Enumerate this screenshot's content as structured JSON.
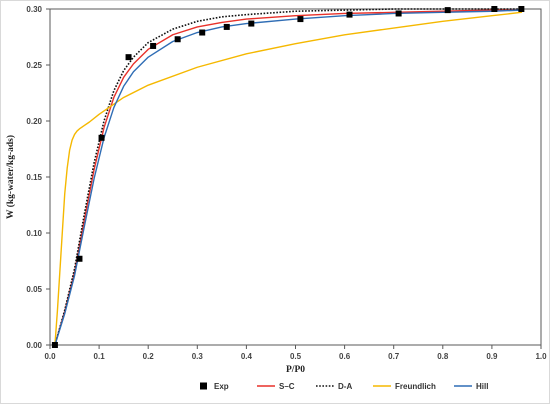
{
  "chart_data": {
    "type": "scatter",
    "xlabel": "P/P0",
    "ylabel": "W (kg-water/kg-ads)",
    "xlim": [
      0.0,
      1.0
    ],
    "ylim": [
      0.0,
      0.3
    ],
    "x_ticks": [
      "0.0",
      "0.1",
      "0.2",
      "0.3",
      "0.4",
      "0.5",
      "0.6",
      "0.7",
      "0.8",
      "0.9",
      "1.0"
    ],
    "y_ticks": [
      "0.00",
      "0.05",
      "0.10",
      "0.15",
      "0.20",
      "0.25",
      "0.30"
    ],
    "grid": false,
    "legend_position": "bottom",
    "series": [
      {
        "name": "Exp",
        "kind": "markers",
        "marker": "square",
        "color": "#000000",
        "x": [
          0.01,
          0.06,
          0.105,
          0.16,
          0.21,
          0.26,
          0.31,
          0.36,
          0.41,
          0.51,
          0.61,
          0.71,
          0.81,
          0.905,
          0.96
        ],
        "y": [
          0.0,
          0.077,
          0.185,
          0.257,
          0.267,
          0.273,
          0.279,
          0.284,
          0.287,
          0.291,
          0.295,
          0.296,
          0.299,
          0.3,
          0.3
        ]
      },
      {
        "name": "S–C",
        "kind": "line",
        "dash": "solid",
        "color": "#e8312a",
        "x": [
          0.01,
          0.03,
          0.05,
          0.07,
          0.09,
          0.11,
          0.13,
          0.15,
          0.17,
          0.2,
          0.25,
          0.3,
          0.35,
          0.4,
          0.5,
          0.6,
          0.7,
          0.8,
          0.9,
          0.96
        ],
        "y": [
          0.0,
          0.03,
          0.065,
          0.112,
          0.157,
          0.194,
          0.221,
          0.239,
          0.251,
          0.264,
          0.277,
          0.284,
          0.288,
          0.291,
          0.294,
          0.296,
          0.297,
          0.298,
          0.299,
          0.299
        ]
      },
      {
        "name": "D-A",
        "kind": "line",
        "dash": "dotted",
        "color": "#111111",
        "x": [
          0.01,
          0.03,
          0.05,
          0.07,
          0.09,
          0.11,
          0.13,
          0.15,
          0.17,
          0.2,
          0.25,
          0.3,
          0.35,
          0.4,
          0.5,
          0.6,
          0.7,
          0.8,
          0.9,
          0.96
        ],
        "y": [
          0.0,
          0.031,
          0.068,
          0.117,
          0.163,
          0.2,
          0.227,
          0.245,
          0.257,
          0.27,
          0.282,
          0.289,
          0.293,
          0.295,
          0.298,
          0.299,
          0.3,
          0.3,
          0.3,
          0.3
        ]
      },
      {
        "name": "Freundlich",
        "kind": "line",
        "dash": "solid",
        "color": "#f5b800",
        "x": [
          0.01,
          0.015,
          0.02,
          0.025,
          0.03,
          0.035,
          0.04,
          0.045,
          0.05,
          0.055,
          0.06,
          0.07,
          0.08,
          0.1,
          0.15,
          0.2,
          0.3,
          0.4,
          0.5,
          0.6,
          0.7,
          0.8,
          0.9,
          0.96
        ],
        "y": [
          0.0,
          0.03,
          0.065,
          0.1,
          0.135,
          0.158,
          0.174,
          0.183,
          0.188,
          0.191,
          0.193,
          0.196,
          0.199,
          0.206,
          0.221,
          0.232,
          0.248,
          0.26,
          0.269,
          0.277,
          0.283,
          0.289,
          0.294,
          0.297
        ]
      },
      {
        "name": "Hill",
        "kind": "line",
        "dash": "solid",
        "color": "#2f6db5",
        "x": [
          0.01,
          0.03,
          0.05,
          0.07,
          0.09,
          0.11,
          0.13,
          0.15,
          0.17,
          0.2,
          0.25,
          0.3,
          0.35,
          0.4,
          0.5,
          0.6,
          0.7,
          0.8,
          0.9,
          0.96
        ],
        "y": [
          0.0,
          0.028,
          0.062,
          0.106,
          0.149,
          0.185,
          0.212,
          0.231,
          0.244,
          0.257,
          0.271,
          0.279,
          0.284,
          0.287,
          0.291,
          0.294,
          0.296,
          0.297,
          0.298,
          0.299
        ]
      }
    ]
  }
}
